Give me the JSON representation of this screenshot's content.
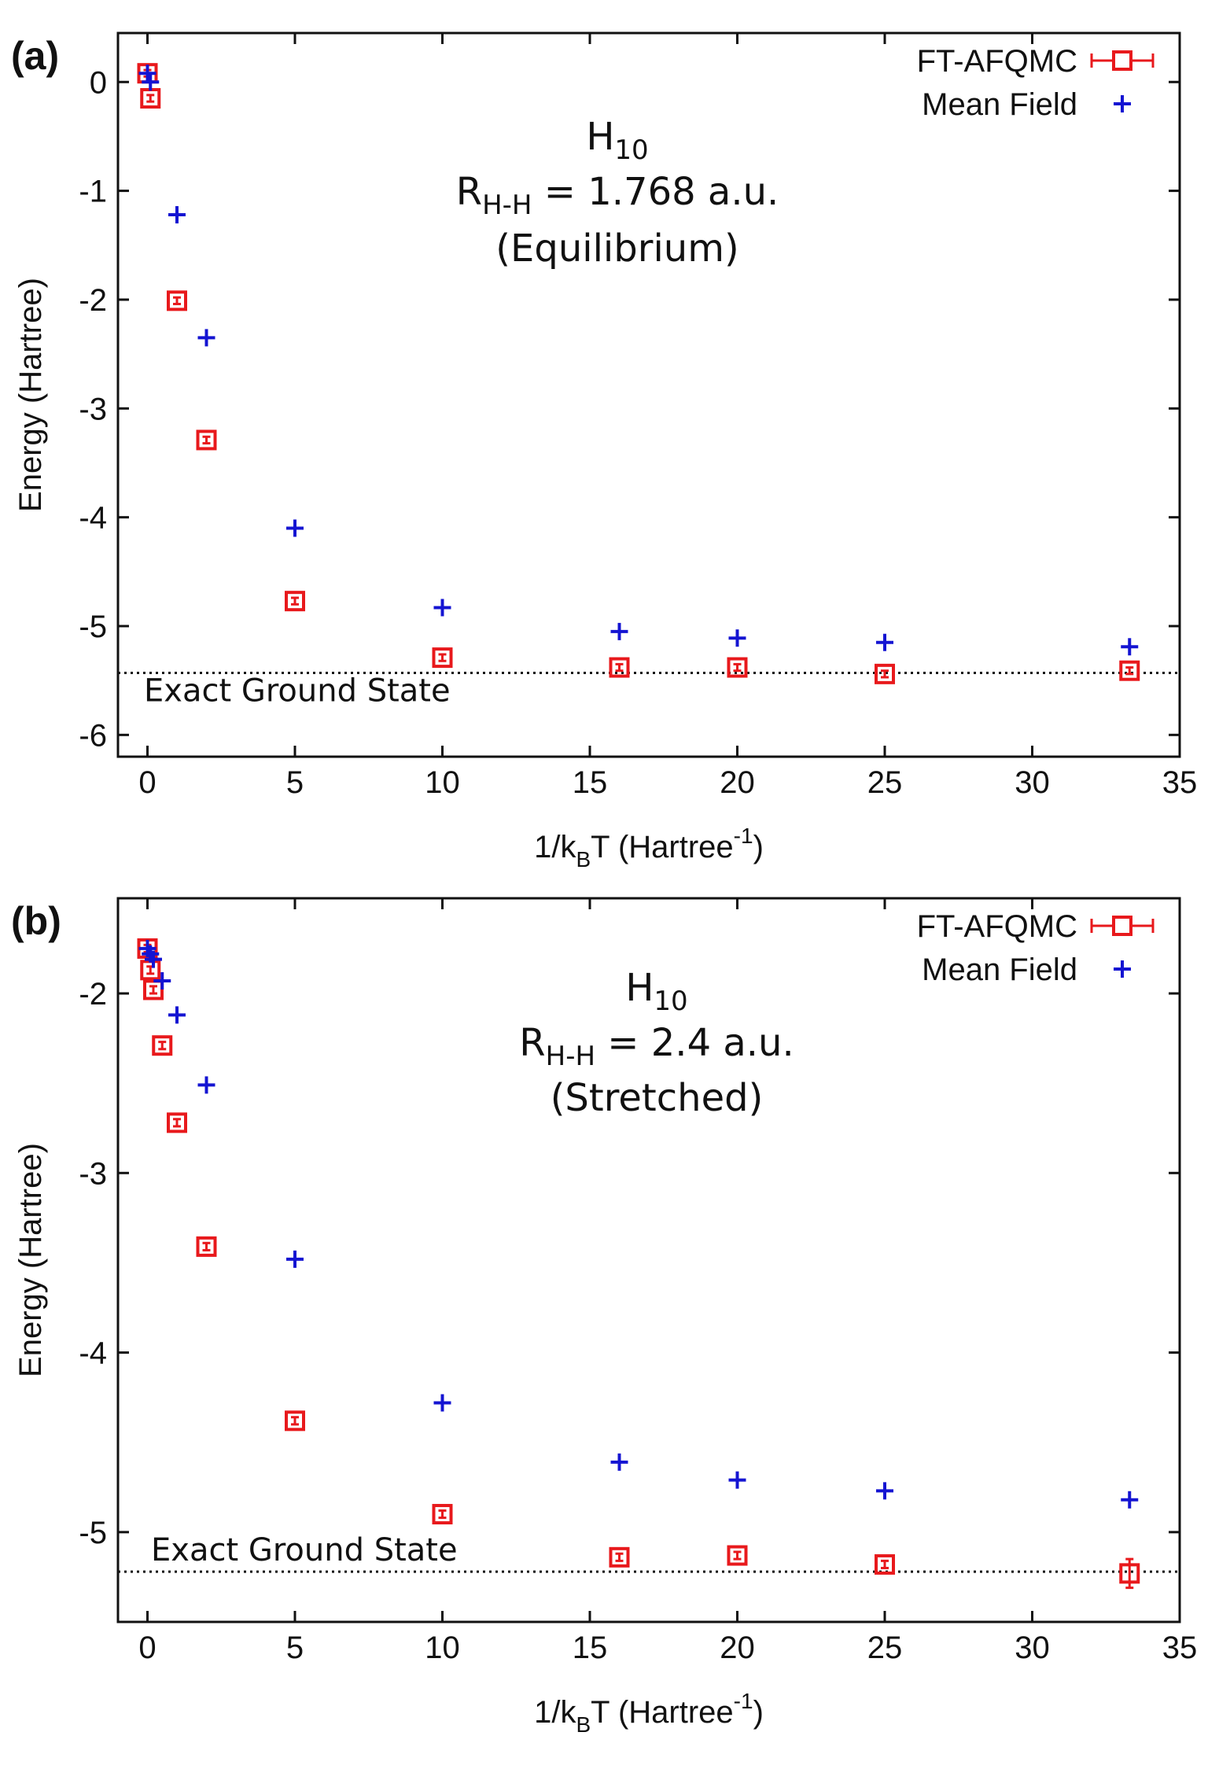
{
  "chart_data": [
    {
      "type": "scatter",
      "panel_label": "(a)",
      "xlabel": {
        "base": "1/k",
        "sub": "B",
        "mid": "T (Hartree",
        "sup": "-1",
        "end": ")"
      },
      "ylabel": "Energy (Hartree)",
      "xlim": [
        -1,
        35
      ],
      "ylim": [
        -6.2,
        0.45
      ],
      "xticks": [
        0,
        5,
        10,
        15,
        20,
        25,
        30,
        35
      ],
      "yticks": [
        0,
        -1,
        -2,
        -3,
        -4,
        -5,
        -6
      ],
      "legend": {
        "position": "top-right",
        "entries": [
          "FT-AFQMC",
          "Mean Field"
        ]
      },
      "annotation": {
        "molecule_base": "H",
        "molecule_sub": "10",
        "bond_base": "R",
        "bond_sub": "H-H",
        "bond_value": " = 1.768 a.u.",
        "regime": "(Equilibrium)"
      },
      "reference_line": {
        "label": "Exact Ground State",
        "y": -5.43
      },
      "series": [
        {
          "name": "FT-AFQMC",
          "color": "#e8191c",
          "marker": "open-square-errorbar",
          "points": [
            {
              "x": 0.0,
              "y": 0.08,
              "err": 0.03
            },
            {
              "x": 0.1,
              "y": -0.15,
              "err": 0.03
            },
            {
              "x": 1.0,
              "y": -2.01,
              "err": 0.03
            },
            {
              "x": 2.0,
              "y": -3.29,
              "err": 0.03
            },
            {
              "x": 5.0,
              "y": -4.77,
              "err": 0.03
            },
            {
              "x": 10.0,
              "y": -5.29,
              "err": 0.03
            },
            {
              "x": 16.0,
              "y": -5.38,
              "err": 0.03
            },
            {
              "x": 20.0,
              "y": -5.38,
              "err": 0.03
            },
            {
              "x": 25.0,
              "y": -5.44,
              "err": 0.03
            },
            {
              "x": 33.3,
              "y": -5.41,
              "err": 0.03
            }
          ]
        },
        {
          "name": "Mean Field",
          "color": "#1414d2",
          "marker": "plus",
          "points": [
            {
              "x": 0.0,
              "y": 0.08
            },
            {
              "x": 0.1,
              "y": 0.0
            },
            {
              "x": 1.0,
              "y": -1.22
            },
            {
              "x": 2.0,
              "y": -2.35
            },
            {
              "x": 5.0,
              "y": -4.1
            },
            {
              "x": 10.0,
              "y": -4.83
            },
            {
              "x": 16.0,
              "y": -5.05
            },
            {
              "x": 20.0,
              "y": -5.11
            },
            {
              "x": 25.0,
              "y": -5.15
            },
            {
              "x": 33.3,
              "y": -5.19
            }
          ]
        }
      ]
    },
    {
      "type": "scatter",
      "panel_label": "(b)",
      "xlabel": {
        "base": "1/k",
        "sub": "B",
        "mid": "T (Hartree",
        "sup": "-1",
        "end": ")"
      },
      "ylabel": "Energy (Hartree)",
      "xlim": [
        -1,
        35
      ],
      "ylim": [
        -5.5,
        -1.47
      ],
      "xticks": [
        0,
        5,
        10,
        15,
        20,
        25,
        30,
        35
      ],
      "yticks": [
        -2,
        -3,
        -4,
        -5
      ],
      "legend": {
        "position": "top-right",
        "entries": [
          "FT-AFQMC",
          "Mean Field"
        ]
      },
      "annotation": {
        "molecule_base": "H",
        "molecule_sub": "10",
        "bond_base": "R",
        "bond_sub": "H-H",
        "bond_value": " = 2.4 a.u.",
        "regime": "(Stretched)"
      },
      "reference_line": {
        "label": "Exact Ground State",
        "y": -5.22
      },
      "series": [
        {
          "name": "FT-AFQMC",
          "color": "#e8191c",
          "marker": "open-square-errorbar",
          "points": [
            {
              "x": 0.0,
              "y": -1.75,
              "err": 0.02
            },
            {
              "x": 0.1,
              "y": -1.87,
              "err": 0.02
            },
            {
              "x": 0.2,
              "y": -1.98,
              "err": 0.02
            },
            {
              "x": 0.5,
              "y": -2.29,
              "err": 0.02
            },
            {
              "x": 1.0,
              "y": -2.72,
              "err": 0.02
            },
            {
              "x": 2.0,
              "y": -3.41,
              "err": 0.02
            },
            {
              "x": 5.0,
              "y": -4.38,
              "err": 0.02
            },
            {
              "x": 10.0,
              "y": -4.9,
              "err": 0.02
            },
            {
              "x": 16.0,
              "y": -5.14,
              "err": 0.02
            },
            {
              "x": 20.0,
              "y": -5.13,
              "err": 0.02
            },
            {
              "x": 25.0,
              "y": -5.18,
              "err": 0.02
            },
            {
              "x": 33.3,
              "y": -5.23,
              "err": 0.08
            }
          ]
        },
        {
          "name": "Mean Field",
          "color": "#1414d2",
          "marker": "plus",
          "points": [
            {
              "x": 0.0,
              "y": -1.75
            },
            {
              "x": 0.1,
              "y": -1.78
            },
            {
              "x": 0.2,
              "y": -1.81
            },
            {
              "x": 0.5,
              "y": -1.93
            },
            {
              "x": 1.0,
              "y": -2.12
            },
            {
              "x": 2.0,
              "y": -2.51
            },
            {
              "x": 5.0,
              "y": -3.48
            },
            {
              "x": 10.0,
              "y": -4.28
            },
            {
              "x": 16.0,
              "y": -4.61
            },
            {
              "x": 20.0,
              "y": -4.71
            },
            {
              "x": 25.0,
              "y": -4.77
            },
            {
              "x": 33.3,
              "y": -4.82
            }
          ]
        }
      ]
    }
  ]
}
